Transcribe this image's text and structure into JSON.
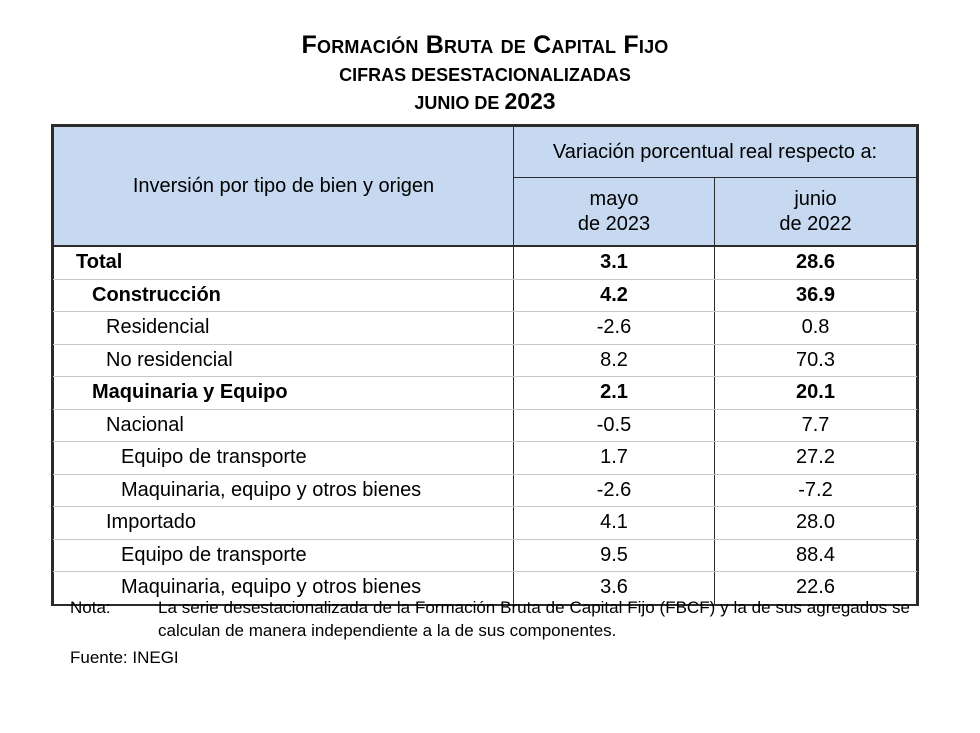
{
  "title": {
    "line1": "Formación Bruta de Capital Fijo",
    "line2": "CIFRAS DESESTACIONALIZADAS",
    "line3_prefix": "JUNIO DE",
    "line3_year": "2023"
  },
  "table": {
    "header": {
      "row_label": "Inversión por tipo de bien y origen",
      "group": "Variación porcentual real respecto a:",
      "col1_line1": "mayo",
      "col1_line2": "de 2023",
      "col2_line1": "junio",
      "col2_line2": "de 2022"
    },
    "rows": [
      {
        "label": "Total",
        "v1": "3.1",
        "v2": "28.6"
      },
      {
        "label": "Construcción",
        "v1": "4.2",
        "v2": "36.9"
      },
      {
        "label": "Residencial",
        "v1": "-2.6",
        "v2": "0.8"
      },
      {
        "label": "No residencial",
        "v1": "8.2",
        "v2": "70.3"
      },
      {
        "label": "Maquinaria y Equipo",
        "v1": "2.1",
        "v2": "20.1"
      },
      {
        "label": "Nacional",
        "v1": "-0.5",
        "v2": "7.7"
      },
      {
        "label": "Equipo de transporte",
        "v1": "1.7",
        "v2": "27.2"
      },
      {
        "label": "Maquinaria, equipo y otros bienes",
        "v1": "-2.6",
        "v2": "-7.2"
      },
      {
        "label": "Importado",
        "v1": "4.1",
        "v2": "28.0"
      },
      {
        "label": "Equipo de transporte",
        "v1": "9.5",
        "v2": "88.4"
      },
      {
        "label": "Maquinaria, equipo y otros bienes",
        "v1": "3.6",
        "v2": "22.6"
      }
    ]
  },
  "note": {
    "key": "Nota:",
    "text": "La serie desestacionalizada de la Formación Bruta de Capital Fijo (FBCF) y la de sus agregados se calculan de manera independiente a la de sus componentes."
  },
  "source": "Fuente: INEGI"
}
